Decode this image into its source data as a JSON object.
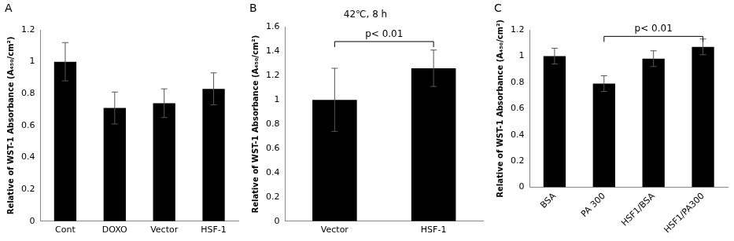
{
  "chart_data": [
    {
      "type": "bar",
      "panel": "A",
      "y_label": "Relative of WST-1 Absorbance (A₄₅₀/cm²)",
      "categories": [
        "Cont",
        "DOXO",
        "Vector",
        "HSF-1"
      ],
      "values": [
        1.0,
        0.71,
        0.74,
        0.83
      ],
      "errors": [
        0.12,
        0.1,
        0.09,
        0.1
      ],
      "color": "#000000",
      "ylim": [
        0,
        1.2
      ],
      "yticks": [
        0,
        0.2,
        0.4,
        0.6,
        0.8,
        1,
        1.2
      ],
      "grid": false
    },
    {
      "type": "bar",
      "panel": "B",
      "title": "42℃, 8 h",
      "y_label": "Relative of WST-1 Absorbance (A₄₅₀/cm²)",
      "categories": [
        "Vector",
        "HSF-1"
      ],
      "values": [
        1.0,
        1.26
      ],
      "errors": [
        0.26,
        0.15
      ],
      "color": "#000000",
      "ylim": [
        0,
        1.6
      ],
      "yticks": [
        0,
        0.2,
        0.4,
        0.6,
        0.8,
        1,
        1.2,
        1.4,
        1.6
      ],
      "grid": false,
      "annotations": [
        {
          "text": "p< 0.01",
          "from": "Vector",
          "to": "HSF-1",
          "y": 1.48
        }
      ]
    },
    {
      "type": "bar",
      "panel": "C",
      "y_label": "Relative of WST-1 Absorbance (A₄₅₀/cm²)",
      "categories": [
        "BSA",
        "PA 300",
        "HSF1/BSA",
        "HSF1/PA300"
      ],
      "values": [
        1.0,
        0.79,
        0.98,
        1.07
      ],
      "errors": [
        0.06,
        0.06,
        0.06,
        0.06
      ],
      "color": "#000000",
      "ylim": [
        0,
        1.2
      ],
      "yticks": [
        0,
        0.2,
        0.4,
        0.6,
        0.8,
        1,
        1.2
      ],
      "grid": false,
      "annotations": [
        {
          "text": "p< 0.01",
          "from": "PA 300",
          "to": "HSF1/PA300",
          "y": 1.15
        }
      ]
    }
  ]
}
